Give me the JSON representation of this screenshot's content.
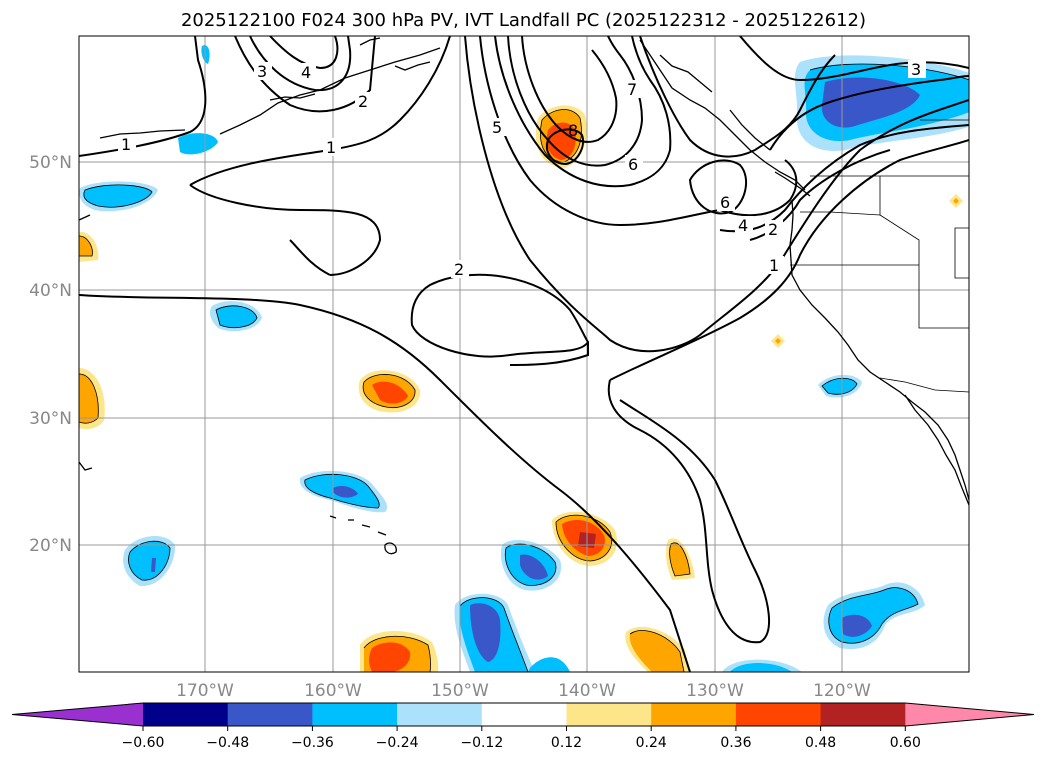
{
  "title": "2025122100 F024 300 hPa PV, IVT Landfall PC (2025122312 - 2025122612)",
  "lat_labels": [
    "50°N",
    "40°N",
    "30°N",
    "20°N"
  ],
  "lon_labels": [
    "170°W",
    "160°W",
    "150°W",
    "140°W",
    "130°W",
    "120°W"
  ],
  "contour_labels": [
    "1",
    "1",
    "1",
    "2",
    "2",
    "2",
    "3",
    "3",
    "4",
    "4",
    "5",
    "6",
    "6",
    "7",
    "8"
  ],
  "colorbar": {
    "ticks": [
      "−0.60",
      "−0.48",
      "−0.36",
      "−0.24",
      "−0.12",
      "0.12",
      "0.24",
      "0.36",
      "0.48",
      "0.60"
    ],
    "colors": [
      "#9b30d0",
      "#00008b",
      "#3a57c9",
      "#00bfff",
      "#abe1fa",
      "#ffffff",
      "#fde68a",
      "#ffa500",
      "#ff4500",
      "#b22222",
      "#ff88aa"
    ]
  }
}
